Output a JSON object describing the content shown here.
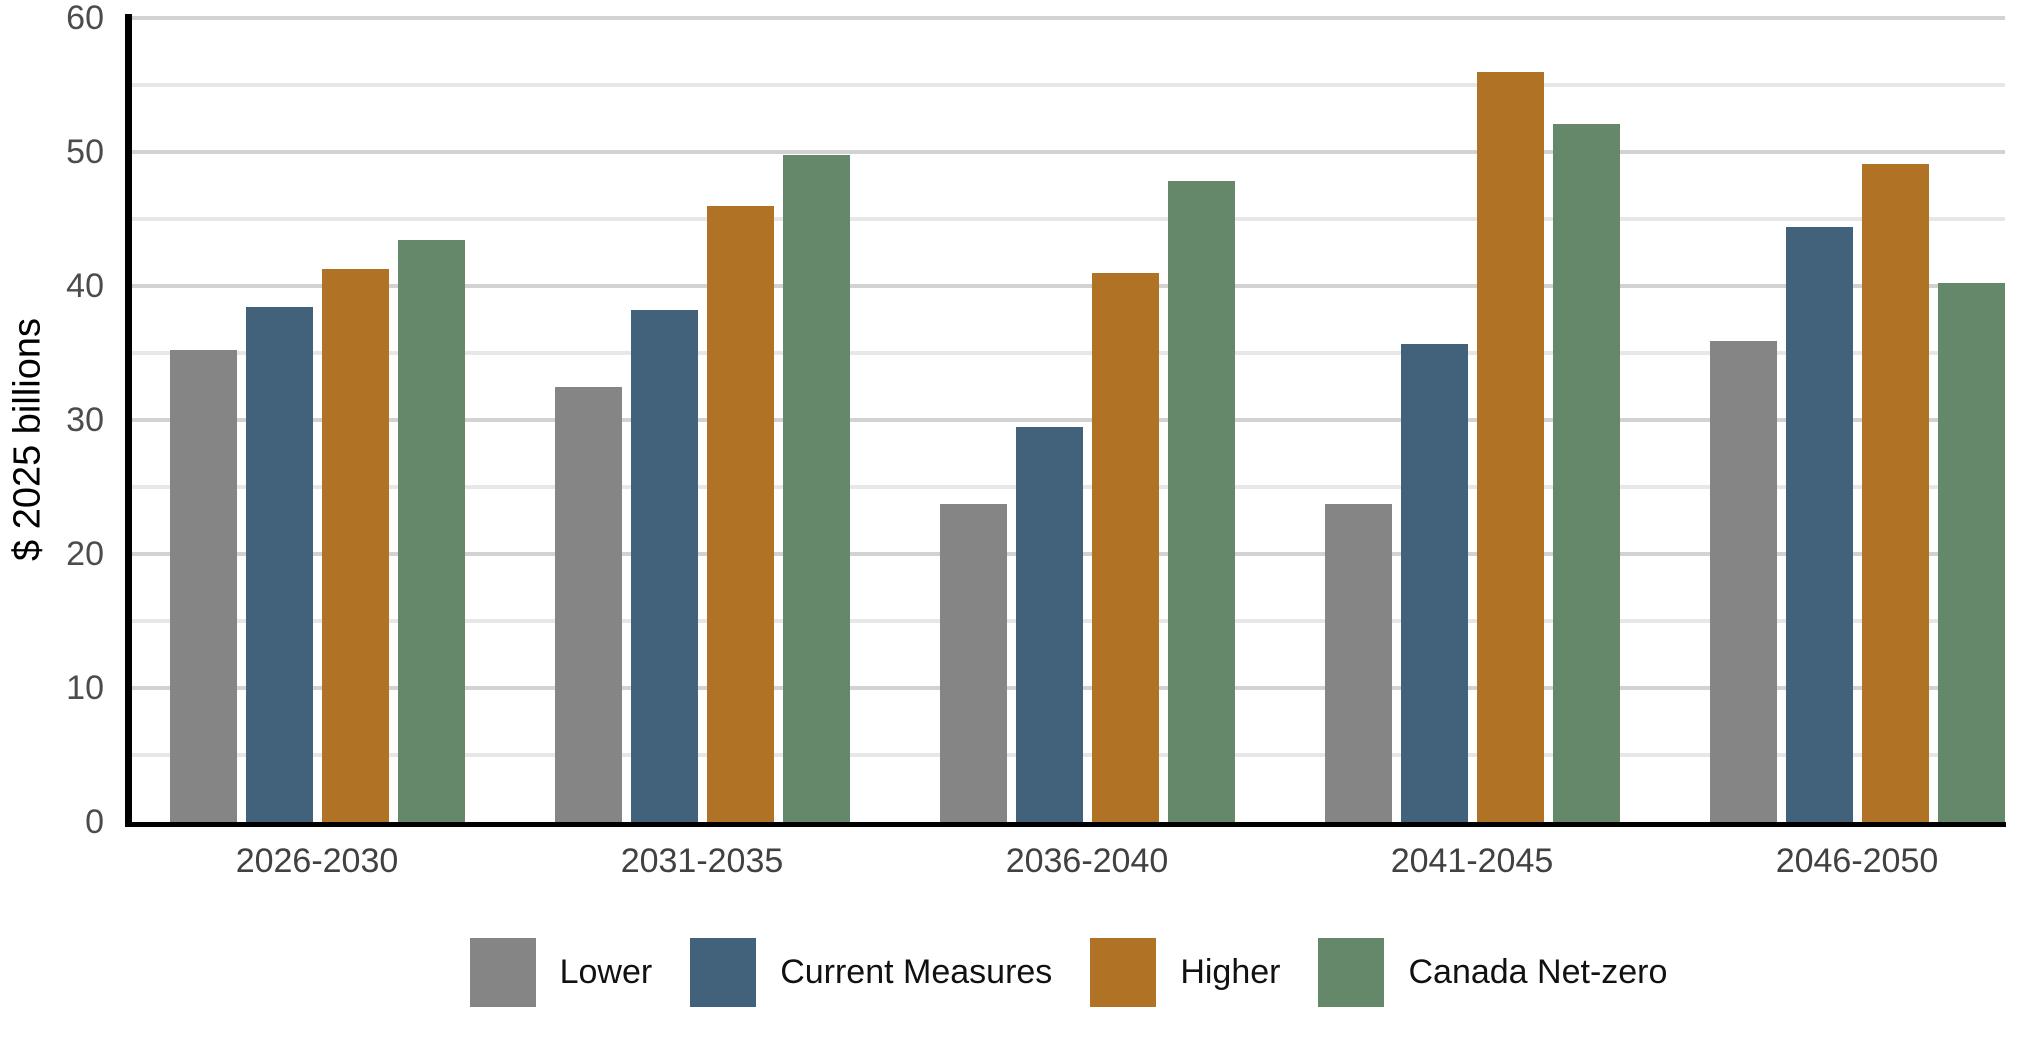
{
  "chart_data": {
    "type": "bar",
    "title": "",
    "xlabel": "",
    "ylabel": "$ 2025 billions",
    "ylim": [
      0,
      60
    ],
    "yticks": [
      0,
      10,
      20,
      30,
      40,
      50,
      60
    ],
    "minor_gridlines": [
      5,
      15,
      25,
      35,
      45,
      55
    ],
    "grid": true,
    "legend_position": "bottom",
    "categories": [
      "2026-2030",
      "2031-2035",
      "2036-2040",
      "2041-2045",
      "2046-2050"
    ],
    "series": [
      {
        "name": "Lower",
        "color": "#858585",
        "values": [
          35.2,
          32.5,
          23.7,
          23.7,
          35.9
        ]
      },
      {
        "name": "Current Measures",
        "color": "#42617a",
        "values": [
          38.4,
          38.2,
          29.5,
          35.7,
          44.4
        ]
      },
      {
        "name": "Higher",
        "color": "#b07326",
        "values": [
          41.3,
          46.0,
          41.0,
          56.0,
          49.1
        ]
      },
      {
        "name": "Canada Net-zero",
        "color": "#65886a",
        "values": [
          43.4,
          49.8,
          47.8,
          52.1,
          40.2
        ]
      }
    ],
    "colors": {
      "background": "#ffffff",
      "axis": "#000000",
      "major_gridline": "#d2d2d2",
      "minor_gridline": "#e7e7e7",
      "tick_label": "#4c4c4c"
    }
  }
}
